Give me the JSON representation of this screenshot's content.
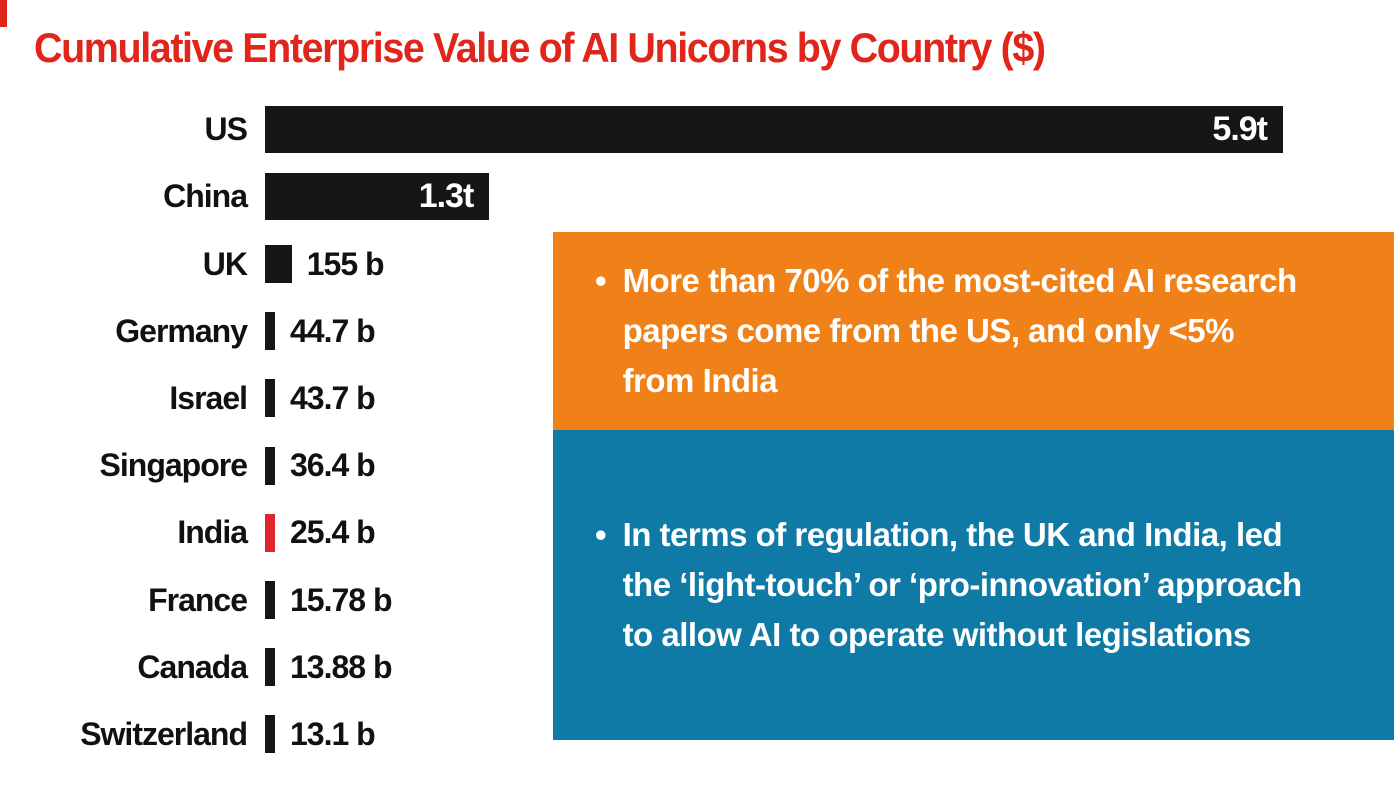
{
  "page": {
    "title": "Cumulative Enterprise Value of AI Unicorns by Country ($)",
    "title_color": "#e1251b",
    "background": "#ffffff"
  },
  "chart_data": {
    "type": "bar",
    "orientation": "horizontal",
    "title": "Cumulative Enterprise Value of AI Unicorns by Country ($)",
    "unit": "USD",
    "categories": [
      "US",
      "China",
      "UK",
      "Germany",
      "Israel",
      "Singapore",
      "India",
      "France",
      "Canada",
      "Switzerland"
    ],
    "values_billions": [
      5900,
      1300,
      155,
      44.7,
      43.7,
      36.4,
      25.4,
      15.78,
      13.88,
      13.1
    ],
    "labels": [
      "5.9t",
      "1.3t",
      "155 b",
      "44.7 b",
      "43.7 b",
      "36.4 b",
      "25.4 b",
      "15.78 b",
      "13.88 b",
      "13.1 b"
    ],
    "bar_color": "#161616",
    "highlight_index": 6,
    "highlight_country": "India",
    "highlight_color": "#e0262d",
    "xlim_billions": [
      0,
      5900
    ],
    "grid": false,
    "legend": false
  },
  "callouts": {
    "orange": {
      "bg": "#f08119",
      "bullet": "•",
      "text": "More than 70% of the most-cited AI research papers come from the US, and only <5% from India"
    },
    "blue": {
      "bg": "#0f7aa6",
      "bullet": "•",
      "text": "In terms of regulation, the UK and India, led the ‘light-touch’ or ‘pro-innovation’ approach to allow AI to operate without legislations"
    }
  }
}
